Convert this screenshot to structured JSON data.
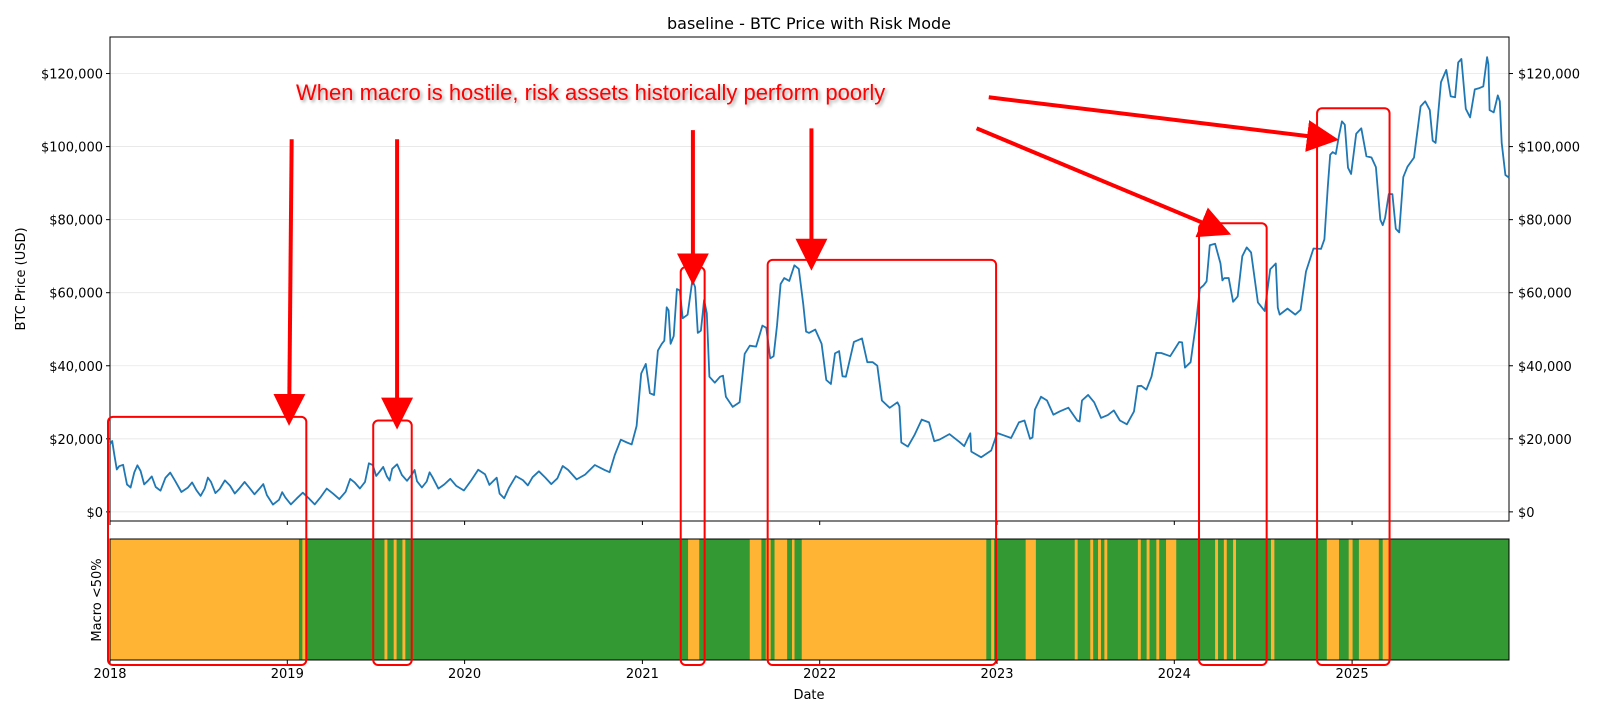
{
  "chart_data": {
    "type": "line",
    "title": "baseline - BTC Price with Risk Mode",
    "xlabel": "Date",
    "ylabel": "BTC Price (USD)",
    "ylim": [
      -2500,
      130000
    ],
    "yticks": [
      0,
      20000,
      40000,
      60000,
      80000,
      100000,
      120000
    ],
    "ytick_labels": [
      "$0",
      "$20,000",
      "$40,000",
      "$60,000",
      "$80,000",
      "$100,000",
      "$120,000"
    ],
    "xlim": [
      "2018-01-01",
      "2025-11-20"
    ],
    "xticks": [
      "2018-01-01",
      "2019-01-01",
      "2020-01-01",
      "2021-01-01",
      "2022-01-01",
      "2023-01-01",
      "2024-01-01",
      "2025-01-01"
    ],
    "xtick_labels": [
      "2018",
      "2019",
      "2020",
      "2021",
      "2022",
      "2023",
      "2024",
      "2025"
    ],
    "grid": true,
    "series": [
      {
        "color": "#1f77b4",
        "points": [
          [
            "2018-01-01",
            18500
          ],
          [
            "2018-01-10",
            15500
          ],
          [
            "2018-01-20",
            12500
          ],
          [
            "2018-02-05",
            7500
          ],
          [
            "2018-02-20",
            10800
          ],
          [
            "2018-03-05",
            11200
          ],
          [
            "2018-03-20",
            8500
          ],
          [
            "2018-04-05",
            6800
          ],
          [
            "2018-04-25",
            9300
          ],
          [
            "2018-05-15",
            8500
          ],
          [
            "2018-06-10",
            6600
          ],
          [
            "2018-06-28",
            5900
          ],
          [
            "2018-07-15",
            6400
          ],
          [
            "2018-07-28",
            8200
          ],
          [
            "2018-08-15",
            6300
          ],
          [
            "2018-09-05",
            7200
          ],
          [
            "2018-09-25",
            6500
          ],
          [
            "2018-10-15",
            6600
          ],
          [
            "2018-11-05",
            6400
          ],
          [
            "2018-11-20",
            4600
          ],
          [
            "2018-12-15",
            3300
          ],
          [
            "2018-12-28",
            3900
          ],
          [
            "2019-01-20",
            3600
          ],
          [
            "2019-02-15",
            3600
          ],
          [
            "2019-03-10",
            3900
          ],
          [
            "2019-04-05",
            5000
          ],
          [
            "2019-05-01",
            5500
          ],
          [
            "2019-05-20",
            8000
          ],
          [
            "2019-06-10",
            8200
          ],
          [
            "2019-06-26",
            12800
          ],
          [
            "2019-07-10",
            11000
          ],
          [
            "2019-07-25",
            9700
          ],
          [
            "2019-08-05",
            11800
          ],
          [
            "2019-08-25",
            10100
          ],
          [
            "2019-09-15",
            10300
          ],
          [
            "2019-09-25",
            8400
          ],
          [
            "2019-10-15",
            8300
          ],
          [
            "2019-10-27",
            9500
          ],
          [
            "2019-11-20",
            7500
          ],
          [
            "2019-12-15",
            7100
          ],
          [
            "2020-01-15",
            8700
          ],
          [
            "2020-02-12",
            10300
          ],
          [
            "2020-03-01",
            8600
          ],
          [
            "2020-03-13",
            5000
          ],
          [
            "2020-04-01",
            6500
          ],
          [
            "2020-04-30",
            8700
          ],
          [
            "2020-05-20",
            9500
          ],
          [
            "2020-06-15",
            9400
          ],
          [
            "2020-07-10",
            9200
          ],
          [
            "2020-08-01",
            11500
          ],
          [
            "2020-09-05",
            10200
          ],
          [
            "2020-10-15",
            11500
          ],
          [
            "2020-11-05",
            15500
          ],
          [
            "2020-11-30",
            19000
          ],
          [
            "2020-12-20",
            23500
          ],
          [
            "2021-01-08",
            40500
          ],
          [
            "2021-01-25",
            32000
          ],
          [
            "2021-02-10",
            46000
          ],
          [
            "2021-02-20",
            56000
          ],
          [
            "2021-02-28",
            46000
          ],
          [
            "2021-03-13",
            61000
          ],
          [
            "2021-03-25",
            53000
          ],
          [
            "2021-04-14",
            63500
          ],
          [
            "2021-04-25",
            49000
          ],
          [
            "2021-05-08",
            58000
          ],
          [
            "2021-05-19",
            37000
          ],
          [
            "2021-06-10",
            37000
          ],
          [
            "2021-06-22",
            31500
          ],
          [
            "2021-07-20",
            30000
          ],
          [
            "2021-08-10",
            45500
          ],
          [
            "2021-09-05",
            51000
          ],
          [
            "2021-09-21",
            42000
          ],
          [
            "2021-10-05",
            51000
          ],
          [
            "2021-10-20",
            64000
          ],
          [
            "2021-11-10",
            67500
          ],
          [
            "2021-11-28",
            57000
          ],
          [
            "2021-12-10",
            49000
          ],
          [
            "2022-01-05",
            46000
          ],
          [
            "2022-01-24",
            35000
          ],
          [
            "2022-02-10",
            44000
          ],
          [
            "2022-02-24",
            37000
          ],
          [
            "2022-03-29",
            47500
          ],
          [
            "2022-04-20",
            41000
          ],
          [
            "2022-05-09",
            30500
          ],
          [
            "2022-06-10",
            30000
          ],
          [
            "2022-06-18",
            19000
          ],
          [
            "2022-07-15",
            21000
          ],
          [
            "2022-08-14",
            24500
          ],
          [
            "2022-09-05",
            19800
          ],
          [
            "2022-10-15",
            19200
          ],
          [
            "2022-11-05",
            21000
          ],
          [
            "2022-11-09",
            16500
          ],
          [
            "2022-12-20",
            16800
          ],
          [
            "2023-01-14",
            21000
          ],
          [
            "2023-02-15",
            24500
          ],
          [
            "2023-03-10",
            20000
          ],
          [
            "2023-03-20",
            28000
          ],
          [
            "2023-04-14",
            30500
          ],
          [
            "2023-05-10",
            27500
          ],
          [
            "2023-06-15",
            25000
          ],
          [
            "2023-06-25",
            30500
          ],
          [
            "2023-07-20",
            30000
          ],
          [
            "2023-08-17",
            26500
          ],
          [
            "2023-09-11",
            25000
          ],
          [
            "2023-10-10",
            27500
          ],
          [
            "2023-10-25",
            34500
          ],
          [
            "2023-11-15",
            37000
          ],
          [
            "2023-12-05",
            43500
          ],
          [
            "2024-01-11",
            46500
          ],
          [
            "2024-01-23",
            39500
          ],
          [
            "2024-02-15",
            52000
          ],
          [
            "2024-03-01",
            62000
          ],
          [
            "2024-03-14",
            73000
          ],
          [
            "2024-04-05",
            68000
          ],
          [
            "2024-04-13",
            64000
          ],
          [
            "2024-05-01",
            57500
          ],
          [
            "2024-05-20",
            70000
          ],
          [
            "2024-06-07",
            71000
          ],
          [
            "2024-07-05",
            55000
          ],
          [
            "2024-07-28",
            68000
          ],
          [
            "2024-08-05",
            54000
          ],
          [
            "2024-09-06",
            54000
          ],
          [
            "2024-09-28",
            65800
          ],
          [
            "2024-10-29",
            72000
          ],
          [
            "2024-11-12",
            89000
          ],
          [
            "2024-11-22",
            98500
          ],
          [
            "2024-12-05",
            103000
          ],
          [
            "2024-12-17",
            106000
          ],
          [
            "2024-12-30",
            92500
          ],
          [
            "2025-01-20",
            105000
          ],
          [
            "2025-02-10",
            97000
          ],
          [
            "2025-02-28",
            80000
          ],
          [
            "2025-03-10",
            80500
          ],
          [
            "2025-03-25",
            87000
          ],
          [
            "2025-04-08",
            76500
          ],
          [
            "2025-04-25",
            94500
          ],
          [
            "2025-05-22",
            111000
          ],
          [
            "2025-06-10",
            110000
          ],
          [
            "2025-06-22",
            101000
          ],
          [
            "2025-07-14",
            121000
          ],
          [
            "2025-08-01",
            113500
          ],
          [
            "2025-08-14",
            124000
          ],
          [
            "2025-09-01",
            108000
          ],
          [
            "2025-09-20",
            116000
          ],
          [
            "2025-10-06",
            124500
          ],
          [
            "2025-10-11",
            110000
          ],
          [
            "2025-10-28",
            114000
          ],
          [
            "2025-11-05",
            101000
          ],
          [
            "2025-11-20",
            91500
          ]
        ]
      }
    ],
    "risk_panel": {
      "ylabel": "Macro <50%",
      "base_color": "#339933",
      "hostile_color": "#ffb533",
      "hostile_periods": [
        [
          "2018-01-01",
          "2019-01-25"
        ],
        [
          "2019-02-01",
          "2019-02-08"
        ],
        [
          "2019-07-20",
          "2019-07-26"
        ],
        [
          "2019-08-08",
          "2019-08-14"
        ],
        [
          "2019-08-26",
          "2019-09-01"
        ],
        [
          "2021-04-05",
          "2021-04-28"
        ],
        [
          "2021-08-10",
          "2021-09-03"
        ],
        [
          "2021-09-12",
          "2021-09-22"
        ],
        [
          "2021-09-30",
          "2021-10-26"
        ],
        [
          "2021-11-05",
          "2021-11-10"
        ],
        [
          "2021-11-25",
          "2022-12-10"
        ],
        [
          "2022-12-20",
          "2022-12-26"
        ],
        [
          "2023-03-01",
          "2023-03-22"
        ],
        [
          "2023-06-10",
          "2023-06-16"
        ],
        [
          "2023-07-12",
          "2023-07-18"
        ],
        [
          "2023-07-28",
          "2023-08-03"
        ],
        [
          "2023-08-10",
          "2023-08-16"
        ],
        [
          "2023-10-18",
          "2023-10-24"
        ],
        [
          "2023-11-05",
          "2023-11-11"
        ],
        [
          "2023-11-25",
          "2023-12-01"
        ],
        [
          "2023-12-15",
          "2024-01-05"
        ],
        [
          "2024-03-25",
          "2024-03-31"
        ],
        [
          "2024-04-12",
          "2024-04-18"
        ],
        [
          "2024-05-01",
          "2024-05-07"
        ],
        [
          "2024-07-18",
          "2024-07-25"
        ],
        [
          "2024-11-10",
          "2024-12-05"
        ],
        [
          "2024-12-25",
          "2025-01-02"
        ],
        [
          "2025-01-15",
          "2025-02-25"
        ],
        [
          "2025-03-05",
          "2025-03-20"
        ]
      ]
    },
    "annotations": {
      "text": "When macro is hostile, risk assets historically perform poorly",
      "color": "#ff0000",
      "arrows": [
        {
          "from": [
            "2019-01-10",
            102000
          ],
          "to": [
            "2019-01-05",
            29000
          ]
        },
        {
          "from": [
            "2019-08-15",
            102000
          ],
          "to": [
            "2019-08-15",
            28000
          ]
        },
        {
          "from": [
            "2021-04-15",
            104500
          ],
          "to": [
            "2021-04-15",
            67500
          ]
        },
        {
          "from": [
            "2021-12-15",
            105000
          ],
          "to": [
            "2021-12-15",
            71500
          ]
        },
        {
          "from": [
            "2022-11-20",
            105000
          ],
          "to": [
            "2024-03-20",
            78000
          ]
        },
        {
          "from": [
            "2022-12-15",
            113500
          ],
          "to": [
            "2024-10-25",
            102500
          ]
        }
      ],
      "highlight_boxes": [
        {
          "start": "2018-01-01",
          "end": "2019-02-05",
          "top": 26000
        },
        {
          "start": "2019-07-01",
          "end": "2019-09-10",
          "top": 25000
        },
        {
          "start": "2021-03-25",
          "end": "2021-05-05",
          "top": 67000
        },
        {
          "start": "2021-09-20",
          "end": "2022-12-26",
          "top": 69000
        },
        {
          "start": "2024-02-25",
          "end": "2024-07-05",
          "top": 79000
        },
        {
          "start": "2024-10-25",
          "end": "2025-03-15",
          "top": 110500
        }
      ]
    }
  }
}
